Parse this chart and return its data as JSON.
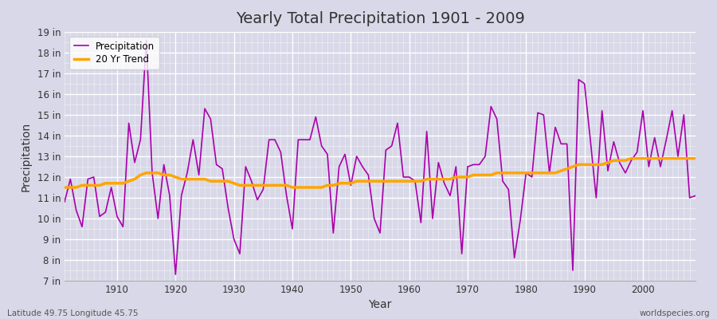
{
  "title": "Yearly Total Precipitation 1901 - 2009",
  "xlabel": "Year",
  "ylabel": "Precipitation",
  "footnote_left": "Latitude 49.75 Longitude 45.75",
  "footnote_right": "worldspecies.org",
  "legend_labels": [
    "Precipitation",
    "20 Yr Trend"
  ],
  "precip_color": "#aa00aa",
  "trend_color": "#FFA500",
  "fig_bg_color": "#d8d8e8",
  "plot_bg_color": "#d8d8e8",
  "grid_color": "#ffffff",
  "ylim": [
    7,
    19
  ],
  "xlim": [
    1901,
    2009
  ],
  "yticks": [
    7,
    8,
    9,
    10,
    11,
    12,
    13,
    14,
    15,
    16,
    17,
    18,
    19
  ],
  "ytick_labels": [
    "7 in",
    "8 in",
    "9 in",
    "10 in",
    "11 in",
    "12 in",
    "13 in",
    "14 in",
    "15 in",
    "16 in",
    "17 in",
    "18 in",
    "19 in"
  ],
  "xticks": [
    1910,
    1920,
    1930,
    1940,
    1950,
    1960,
    1970,
    1980,
    1990,
    2000
  ],
  "years": [
    1901,
    1902,
    1903,
    1904,
    1905,
    1906,
    1907,
    1908,
    1909,
    1910,
    1911,
    1912,
    1913,
    1914,
    1915,
    1916,
    1917,
    1918,
    1919,
    1920,
    1921,
    1922,
    1923,
    1924,
    1925,
    1926,
    1927,
    1928,
    1929,
    1930,
    1931,
    1932,
    1933,
    1934,
    1935,
    1936,
    1937,
    1938,
    1939,
    1940,
    1941,
    1942,
    1943,
    1944,
    1945,
    1946,
    1947,
    1948,
    1949,
    1950,
    1951,
    1952,
    1953,
    1954,
    1955,
    1956,
    1957,
    1958,
    1959,
    1960,
    1961,
    1962,
    1963,
    1964,
    1965,
    1966,
    1967,
    1968,
    1969,
    1970,
    1971,
    1972,
    1973,
    1974,
    1975,
    1976,
    1977,
    1978,
    1979,
    1980,
    1981,
    1982,
    1983,
    1984,
    1985,
    1986,
    1987,
    1988,
    1989,
    1990,
    1991,
    1992,
    1993,
    1994,
    1995,
    1996,
    1997,
    1998,
    1999,
    2000,
    2001,
    2002,
    2003,
    2004,
    2005,
    2006,
    2007,
    2008,
    2009
  ],
  "precip": [
    10.8,
    11.9,
    10.4,
    9.6,
    11.9,
    12.0,
    10.1,
    10.3,
    11.5,
    10.1,
    9.6,
    14.6,
    12.7,
    13.8,
    18.6,
    12.2,
    10.0,
    12.6,
    11.1,
    7.3,
    11.1,
    12.2,
    13.8,
    12.1,
    15.3,
    14.8,
    12.6,
    12.4,
    10.5,
    9.0,
    8.3,
    12.5,
    11.8,
    10.9,
    11.4,
    13.8,
    13.8,
    13.2,
    11.1,
    9.5,
    13.8,
    13.8,
    13.8,
    14.9,
    13.5,
    13.1,
    9.3,
    12.5,
    13.1,
    11.6,
    13.0,
    12.5,
    12.1,
    10.0,
    9.3,
    13.3,
    13.5,
    14.6,
    12.0,
    12.0,
    11.8,
    9.8,
    14.2,
    10.0,
    12.7,
    11.7,
    11.1,
    12.5,
    8.3,
    12.5,
    12.6,
    12.6,
    13.0,
    15.4,
    14.8,
    11.8,
    11.4,
    8.1,
    9.9,
    12.2,
    12.0,
    15.1,
    15.0,
    12.2,
    14.4,
    13.6,
    13.6,
    7.5,
    16.7,
    16.5,
    13.8,
    11.0,
    15.2,
    12.3,
    13.7,
    12.7,
    12.2,
    12.8,
    13.2,
    15.2,
    12.5,
    13.9,
    12.5,
    13.8,
    15.2,
    13.0,
    15.0,
    11.0,
    11.1
  ],
  "trend": [
    11.5,
    11.5,
    11.5,
    11.6,
    11.6,
    11.6,
    11.6,
    11.7,
    11.7,
    11.7,
    11.7,
    11.8,
    11.9,
    12.1,
    12.2,
    12.2,
    12.2,
    12.1,
    12.1,
    12.0,
    11.9,
    11.9,
    11.9,
    11.9,
    11.9,
    11.8,
    11.8,
    11.8,
    11.8,
    11.7,
    11.6,
    11.6,
    11.6,
    11.6,
    11.6,
    11.6,
    11.6,
    11.6,
    11.6,
    11.5,
    11.5,
    11.5,
    11.5,
    11.5,
    11.5,
    11.6,
    11.6,
    11.7,
    11.7,
    11.7,
    11.8,
    11.8,
    11.8,
    11.8,
    11.8,
    11.8,
    11.8,
    11.8,
    11.8,
    11.8,
    11.8,
    11.8,
    11.9,
    11.9,
    11.9,
    11.9,
    11.9,
    12.0,
    12.0,
    12.0,
    12.1,
    12.1,
    12.1,
    12.1,
    12.2,
    12.2,
    12.2,
    12.2,
    12.2,
    12.2,
    12.2,
    12.2,
    12.2,
    12.2,
    12.2,
    12.3,
    12.4,
    12.5,
    12.6,
    12.6,
    12.6,
    12.6,
    12.6,
    12.7,
    12.8,
    12.8,
    12.8,
    12.9,
    12.9,
    12.9,
    12.9,
    12.9,
    12.9,
    12.9,
    12.9,
    12.9,
    12.9,
    12.9,
    12.9
  ]
}
